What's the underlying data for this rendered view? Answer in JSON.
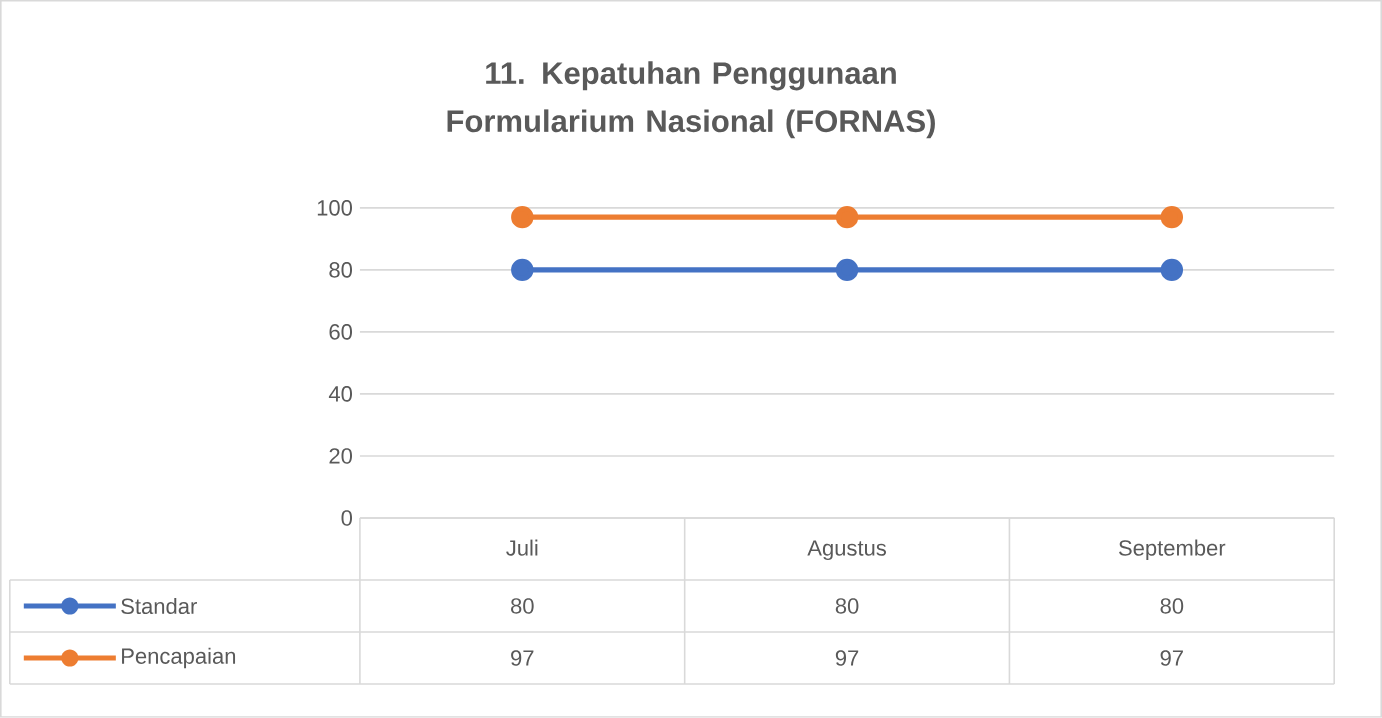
{
  "chart_data": {
    "type": "line",
    "title": "11. Kepatuhan Penggunaan Formularium Nasional (FORNAS)",
    "categories": [
      "Juli",
      "Agustus",
      "September"
    ],
    "series": [
      {
        "name": "Standar",
        "color": "#4472c4",
        "values": [
          80,
          80,
          80
        ]
      },
      {
        "name": "Pencapaian",
        "color": "#ed7d31",
        "values": [
          97,
          97,
          97
        ]
      }
    ],
    "ylim": [
      0,
      100
    ],
    "yticks": [
      0,
      20,
      40,
      60,
      80,
      100
    ],
    "grid": "y",
    "legend": "bottom",
    "data_labels": true,
    "marker": "circle",
    "line_style": "solid"
  }
}
